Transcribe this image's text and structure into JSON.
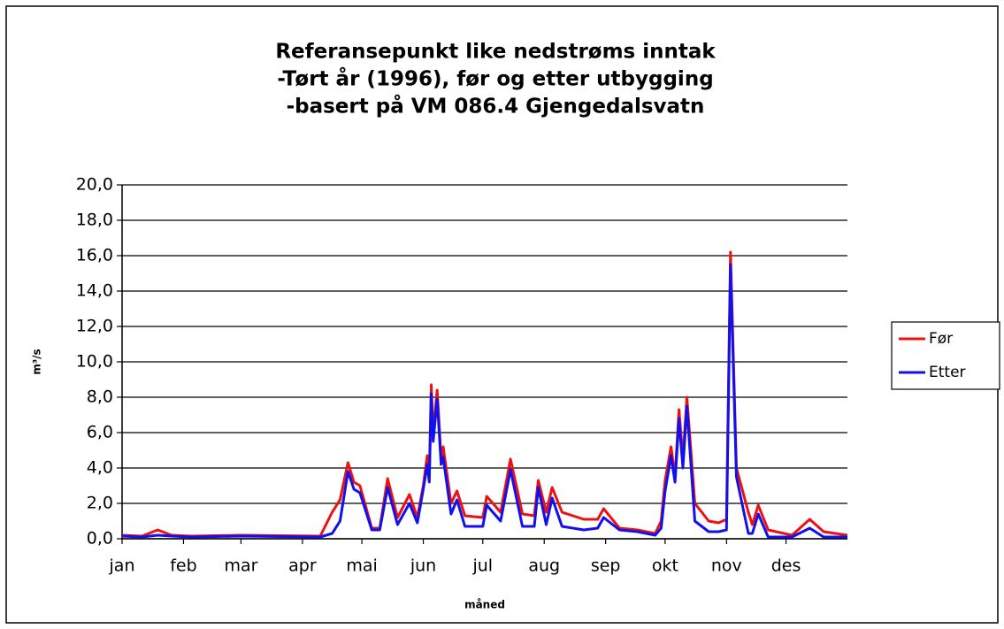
{
  "chart_data": {
    "type": "line",
    "title": [
      "Referansepunkt like nedstrøms inntak",
      "-Tørt år (1996), før og etter utbygging",
      "-basert på VM 086.4 Gjengedalsvatn"
    ],
    "xlabel": "måned",
    "ylabel": "m³/s",
    "x": [
      0,
      10,
      18,
      25,
      35,
      60,
      100,
      106,
      110,
      114,
      117,
      120,
      126,
      130,
      134,
      139,
      145,
      149,
      152,
      154,
      155,
      156,
      157,
      159,
      161,
      162,
      166,
      169,
      173,
      182,
      184,
      191,
      196,
      202,
      208,
      210,
      214,
      217,
      222,
      233,
      240,
      243,
      251,
      260,
      269,
      272,
      274,
      277,
      279,
      281,
      283,
      285,
      289,
      296,
      301,
      305,
      307,
      310,
      316,
      318,
      321,
      326,
      338,
      347,
      354,
      366
    ],
    "series": [
      {
        "name": "Før",
        "color": "#ee1111",
        "values": [
          0.2,
          0.15,
          0.5,
          0.2,
          0.15,
          0.2,
          0.15,
          1.5,
          2.2,
          4.3,
          3.2,
          3.0,
          0.6,
          0.6,
          3.4,
          1.2,
          2.5,
          1.2,
          3.0,
          4.7,
          3.5,
          8.7,
          6.0,
          8.4,
          4.5,
          5.2,
          2.0,
          2.7,
          1.3,
          1.2,
          2.4,
          1.5,
          4.5,
          1.4,
          1.3,
          3.3,
          1.5,
          2.9,
          1.5,
          1.1,
          1.1,
          1.7,
          0.6,
          0.5,
          0.3,
          1.0,
          3.3,
          5.2,
          3.5,
          7.3,
          4.5,
          8.0,
          2.0,
          1.0,
          0.9,
          1.1,
          16.2,
          4.0,
          1.5,
          0.8,
          1.9,
          0.5,
          0.2,
          1.1,
          0.4,
          0.2
        ]
      },
      {
        "name": "Etter",
        "color": "#1111ee",
        "values": [
          0.15,
          0.1,
          0.2,
          0.15,
          0.1,
          0.15,
          0.1,
          0.3,
          1.0,
          3.8,
          2.8,
          2.6,
          0.5,
          0.5,
          2.9,
          0.8,
          2.0,
          0.9,
          2.8,
          4.2,
          3.2,
          8.2,
          5.5,
          7.9,
          4.2,
          4.6,
          1.4,
          2.2,
          0.7,
          0.7,
          1.9,
          1.0,
          3.9,
          0.7,
          0.7,
          2.9,
          0.8,
          2.3,
          0.7,
          0.5,
          0.6,
          1.2,
          0.5,
          0.4,
          0.2,
          0.6,
          2.7,
          4.7,
          3.2,
          6.8,
          4.0,
          7.5,
          1.0,
          0.4,
          0.4,
          0.5,
          15.5,
          3.5,
          0.3,
          0.3,
          1.4,
          0.1,
          0.1,
          0.6,
          0.1,
          0.1
        ]
      }
    ],
    "xlim": [
      0,
      366
    ],
    "xticks": [
      {
        "value": 0,
        "label": "jan"
      },
      {
        "value": 31,
        "label": "feb"
      },
      {
        "value": 60,
        "label": "mar"
      },
      {
        "value": 91,
        "label": "apr"
      },
      {
        "value": 121,
        "label": "mai"
      },
      {
        "value": 152,
        "label": "jun"
      },
      {
        "value": 182,
        "label": "jul"
      },
      {
        "value": 213,
        "label": "aug"
      },
      {
        "value": 244,
        "label": "sep"
      },
      {
        "value": 274,
        "label": "okt"
      },
      {
        "value": 305,
        "label": "nov"
      },
      {
        "value": 335,
        "label": "des"
      }
    ],
    "ylim": [
      0,
      20
    ],
    "yticks": [
      {
        "value": 0,
        "label": "0,0"
      },
      {
        "value": 2,
        "label": "2,0"
      },
      {
        "value": 4,
        "label": "4,0"
      },
      {
        "value": 6,
        "label": "6,0"
      },
      {
        "value": 8,
        "label": "8,0"
      },
      {
        "value": 10,
        "label": "10,0"
      },
      {
        "value": 12,
        "label": "12,0"
      },
      {
        "value": 14,
        "label": "14,0"
      },
      {
        "value": 16,
        "label": "16,0"
      },
      {
        "value": 18,
        "label": "18,0"
      },
      {
        "value": 20,
        "label": "20,0"
      }
    ],
    "grid": true,
    "legend": "right"
  }
}
